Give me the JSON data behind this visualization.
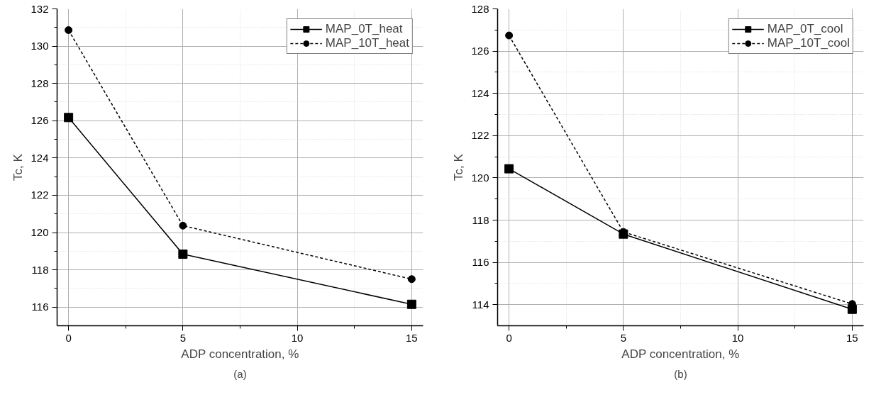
{
  "chart_data": [
    {
      "type": "line",
      "xlabel": "ADP concentration, %",
      "ylabel": "Tc, K",
      "x": [
        0,
        5,
        15
      ],
      "xlim": [
        -0.5,
        15.5
      ],
      "xticks": [
        0,
        5,
        10,
        15
      ],
      "ylim": [
        115,
        132
      ],
      "yticks": [
        116,
        118,
        120,
        122,
        124,
        126,
        128,
        130,
        132
      ],
      "grid": true,
      "legend": "top right",
      "annotations": [
        "(a)"
      ],
      "series": [
        {
          "name": "MAP_0T_heat",
          "color": "#000000",
          "marker": "square",
          "line_style": "solid",
          "values": [
            126.17,
            118.84,
            116.15
          ]
        },
        {
          "name": "MAP_10T_heat",
          "color": "#000000",
          "marker": "circle",
          "line_style": "dashed",
          "values": [
            130.86,
            120.37,
            117.5
          ]
        }
      ]
    },
    {
      "type": "line",
      "xlabel": "ADP concentration, %",
      "ylabel": "Tc, K",
      "x": [
        0,
        5,
        15
      ],
      "xlim": [
        -0.5,
        15.5
      ],
      "xticks": [
        0,
        5,
        10,
        15
      ],
      "ylim": [
        113,
        128
      ],
      "yticks": [
        114,
        116,
        118,
        120,
        122,
        124,
        126,
        128
      ],
      "grid": true,
      "legend": "top right",
      "annotations": [
        "(b)"
      ],
      "series": [
        {
          "name": "MAP_0T_cool",
          "color": "#000000",
          "marker": "square",
          "line_style": "solid",
          "values": [
            120.43,
            117.34,
            113.78
          ]
        },
        {
          "name": "MAP_10T_cool",
          "color": "#000000",
          "marker": "circle",
          "line_style": "dashed",
          "values": [
            126.74,
            117.44,
            114.03
          ]
        }
      ]
    }
  ]
}
